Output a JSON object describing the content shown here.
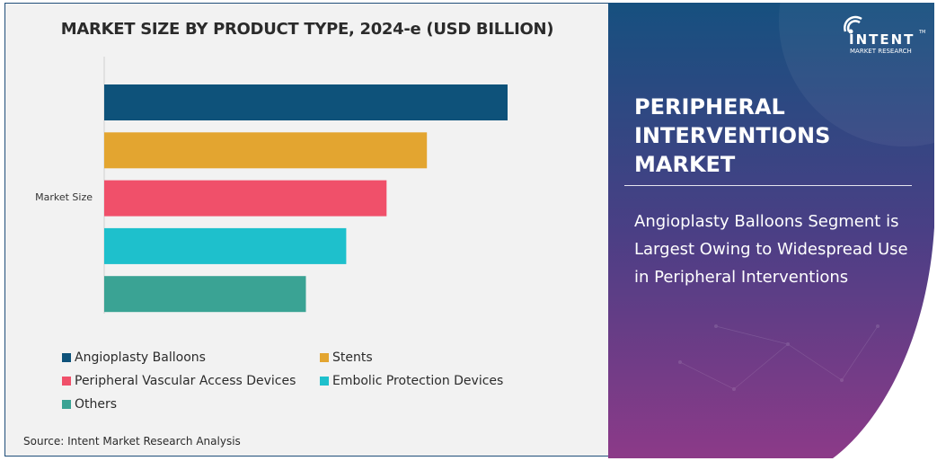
{
  "chart_data": {
    "type": "bar",
    "orientation": "horizontal",
    "title": "MARKET SIZE BY PRODUCT TYPE, 2024-e (USD BILLION)",
    "categories": [
      "Market Size"
    ],
    "value_note": "relative bar lengths, % of largest (no values printed)",
    "series": [
      {
        "name": "Angioplasty Balloons",
        "values": [
          100
        ],
        "color": "#0e527a"
      },
      {
        "name": "Stents",
        "values": [
          80
        ],
        "color": "#e3a530"
      },
      {
        "name": "Peripheral Vascular Access Devices",
        "values": [
          70
        ],
        "color": "#f0506a"
      },
      {
        "name": "Embolic Protection Devices",
        "values": [
          60
        ],
        "color": "#1ec0cc"
      },
      {
        "name": "Others",
        "values": [
          50
        ],
        "color": "#3aa394"
      }
    ],
    "xlim": [
      0,
      100
    ],
    "grid": false,
    "legend_placement": "bottom"
  },
  "source": "Source: Intent Market Research Analysis",
  "panel": {
    "title": "PERIPHERAL INTERVENTIONS MARKET",
    "subtitle": "Angioplasty Balloons Segment is Largest Owing to Widespread Use in Peripheral Interventions",
    "logo": {
      "name": "INTENT",
      "tagline": "MARKET RESEARCH",
      "tm": "TM"
    },
    "gradient": [
      "#16507f",
      "#4a3f85",
      "#8c3a88"
    ]
  }
}
